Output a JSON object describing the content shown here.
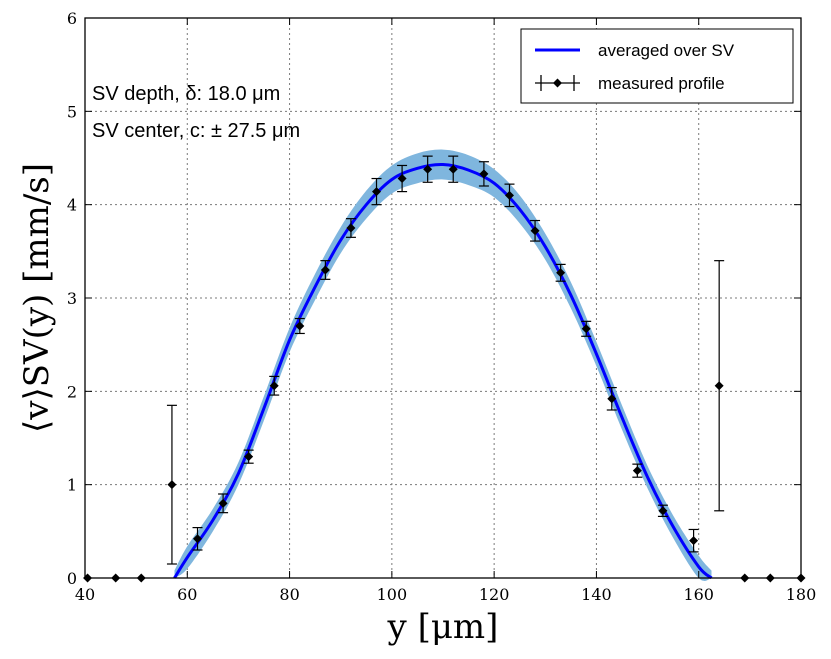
{
  "chart_data": {
    "type": "line",
    "xlabel": "y [μm]",
    "ylabel": "⟨v⟩SV(y) [mm/s]",
    "xlim": [
      40,
      180
    ],
    "ylim": [
      0,
      6
    ],
    "xticks": [
      "40",
      "60",
      "80",
      "100",
      "120",
      "140",
      "160",
      "180"
    ],
    "yticks": [
      "0",
      "1",
      "2",
      "3",
      "4",
      "5",
      "6"
    ],
    "grid": true,
    "legend_position": "top-right",
    "annotations": [
      "SV depth, δ: 18.0 μm",
      "SV center, c: ± 27.5 μm"
    ],
    "series": [
      {
        "name": "averaged over SV",
        "color": "#0000ff",
        "band_color": "#7fb6de",
        "x": [
          57.5,
          60,
          65,
          70,
          75,
          80,
          85,
          90,
          95,
          100,
          105,
          110,
          115,
          120,
          125,
          130,
          135,
          140,
          145,
          150,
          155,
          160,
          162.5
        ],
        "y": [
          0.0,
          0.22,
          0.62,
          1.12,
          1.82,
          2.55,
          3.12,
          3.62,
          4.0,
          4.27,
          4.39,
          4.43,
          4.37,
          4.23,
          3.95,
          3.55,
          3.03,
          2.4,
          1.72,
          1.08,
          0.55,
          0.12,
          0.0
        ],
        "band_halfwidth": [
          0.08,
          0.12,
          0.12,
          0.12,
          0.13,
          0.13,
          0.14,
          0.14,
          0.15,
          0.15,
          0.16,
          0.16,
          0.16,
          0.15,
          0.15,
          0.14,
          0.14,
          0.13,
          0.13,
          0.12,
          0.12,
          0.12,
          0.08
        ]
      },
      {
        "name": "measured profile",
        "color": "#000000",
        "x": [
          40.5,
          46,
          51,
          57,
          62,
          67,
          72,
          77,
          82,
          87,
          92,
          97,
          102,
          107,
          112,
          118,
          123,
          128,
          133,
          138,
          143,
          148,
          153,
          159,
          164,
          169,
          174,
          180
        ],
        "y": [
          0,
          0,
          0,
          1.0,
          0.42,
          0.8,
          1.3,
          2.06,
          2.7,
          3.3,
          3.75,
          4.14,
          4.28,
          4.38,
          4.38,
          4.33,
          4.1,
          3.72,
          3.27,
          2.67,
          1.92,
          1.15,
          0.72,
          0.4,
          2.06,
          0,
          0,
          0
        ],
        "yerr": [
          0,
          0,
          0,
          0.85,
          0.12,
          0.1,
          0.07,
          0.1,
          0.08,
          0.1,
          0.1,
          0.14,
          0.14,
          0.14,
          0.14,
          0.13,
          0.12,
          0.11,
          0.09,
          0.08,
          0.12,
          0.07,
          0.06,
          0.12,
          1.34,
          0,
          0,
          0
        ]
      }
    ]
  }
}
